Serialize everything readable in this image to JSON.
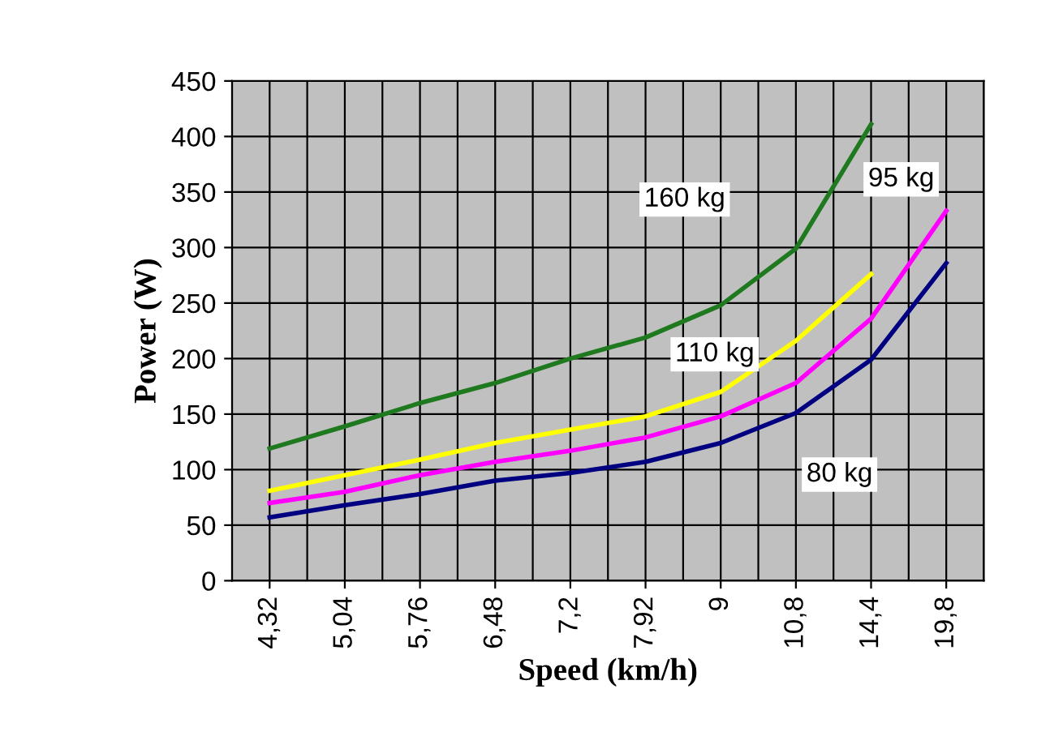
{
  "chart_data": {
    "type": "line",
    "xlabel": "Speed (km/h)",
    "ylabel": "Power (W)",
    "categories": [
      "4,32",
      null,
      "5,04",
      null,
      "5,76",
      null,
      "6,48",
      null,
      "7,2",
      null,
      "7,92",
      null,
      "9",
      null,
      "10,8",
      null,
      "14,4",
      null,
      "19,8",
      null
    ],
    "series": [
      {
        "name": "160 kg",
        "color": "#1f7a1f",
        "values": [
          119,
          null,
          139,
          null,
          160,
          null,
          178,
          null,
          200,
          null,
          219,
          null,
          248,
          null,
          299,
          null,
          411,
          null,
          null,
          null
        ]
      },
      {
        "name": "110 kg",
        "color": "#ffff00",
        "values": [
          81,
          null,
          95,
          null,
          109,
          null,
          124,
          null,
          136,
          null,
          148,
          null,
          170,
          null,
          216,
          null,
          276,
          null,
          null,
          null
        ]
      },
      {
        "name": "95 kg",
        "color": "#ff00ff",
        "values": [
          70,
          null,
          80,
          null,
          95,
          null,
          107,
          null,
          117,
          null,
          129,
          null,
          148,
          null,
          178,
          null,
          236,
          null,
          333,
          null
        ]
      },
      {
        "name": "80 kg",
        "color": "#000080",
        "values": [
          57,
          null,
          68,
          null,
          78,
          null,
          90,
          null,
          97,
          null,
          107,
          null,
          124,
          null,
          151,
          null,
          199,
          null,
          286,
          null
        ]
      }
    ],
    "ylim": [
      0,
      450
    ],
    "yticks": [
      0,
      50,
      100,
      150,
      200,
      250,
      300,
      350,
      400,
      450
    ],
    "grid": true,
    "legend": false,
    "marker": "none",
    "line_style": "solid"
  }
}
